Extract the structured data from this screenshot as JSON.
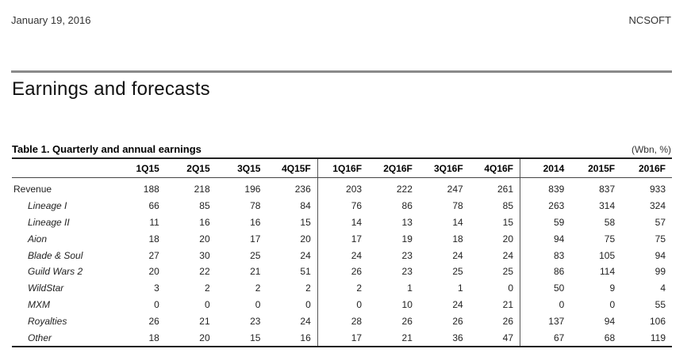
{
  "header": {
    "date": "January 19, 2016",
    "company": "NCSOFT"
  },
  "section_title": "Earnings and forecasts",
  "table": {
    "title": "Table 1. Quarterly and annual earnings",
    "units": "(Wbn, %)",
    "columns": [
      "",
      "1Q15",
      "2Q15",
      "3Q15",
      "4Q15F",
      "1Q16F",
      "2Q16F",
      "3Q16F",
      "4Q16F",
      "2014",
      "2015F",
      "2016F"
    ],
    "rows": [
      {
        "label": "Revenue",
        "values": [
          "188",
          "218",
          "196",
          "236",
          "203",
          "222",
          "247",
          "261",
          "839",
          "837",
          "933"
        ]
      },
      {
        "label": "Lineage I",
        "values": [
          "66",
          "85",
          "78",
          "84",
          "76",
          "86",
          "78",
          "85",
          "263",
          "314",
          "324"
        ]
      },
      {
        "label": "Lineage II",
        "values": [
          "11",
          "16",
          "16",
          "15",
          "14",
          "13",
          "14",
          "15",
          "59",
          "58",
          "57"
        ]
      },
      {
        "label": "Aion",
        "values": [
          "18",
          "20",
          "17",
          "20",
          "17",
          "19",
          "18",
          "20",
          "94",
          "75",
          "75"
        ]
      },
      {
        "label": "Blade & Soul",
        "values": [
          "27",
          "30",
          "25",
          "24",
          "24",
          "23",
          "24",
          "24",
          "83",
          "105",
          "94"
        ]
      },
      {
        "label": "Guild Wars 2",
        "values": [
          "20",
          "22",
          "21",
          "51",
          "26",
          "23",
          "25",
          "25",
          "86",
          "114",
          "99"
        ]
      },
      {
        "label": "WildStar",
        "values": [
          "3",
          "2",
          "2",
          "2",
          "2",
          "1",
          "1",
          "0",
          "50",
          "9",
          "4"
        ]
      },
      {
        "label": "MXM",
        "values": [
          "0",
          "0",
          "0",
          "0",
          "0",
          "10",
          "24",
          "21",
          "0",
          "0",
          "55"
        ]
      },
      {
        "label": "Royalties",
        "values": [
          "26",
          "21",
          "23",
          "24",
          "28",
          "26",
          "26",
          "26",
          "137",
          "94",
          "106"
        ]
      },
      {
        "label": "Other",
        "values": [
          "18",
          "20",
          "15",
          "16",
          "17",
          "21",
          "36",
          "47",
          "67",
          "68",
          "119"
        ]
      }
    ]
  }
}
